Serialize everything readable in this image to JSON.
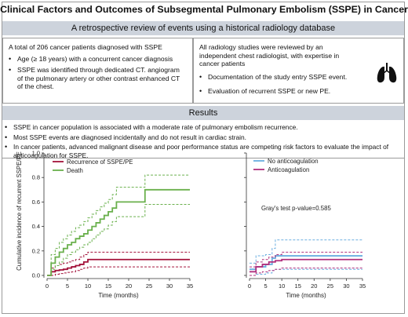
{
  "title": "Clinical Factors and Outcomes of Subsegmental Pulmonary Embolism (SSPE) in Cancer",
  "subtitle": "A retrospective review of events using a historical radiology database",
  "left_box": {
    "intro": "A total of 206 cancer patients diagnosed with SSPE",
    "bullets": [
      "Age (≥ 18 years) with a concurrent cancer diagnosis",
      "SSPE was identified through dedicated CT. angiogram of the pulmonary artery or other contrast enhanced CT of the chest."
    ]
  },
  "right_box": {
    "intro": "All radiology studies were reviewed by an independent chest radiologist, with expertise in cancer patients",
    "bullets": [
      "Documentation of the study entry SSPE event.",
      "Evaluation of recurrent SSPE or new PE."
    ],
    "icon": "lungs-icon"
  },
  "results": {
    "heading": "Results",
    "bullets": [
      "SSPE in cancer population is associated with a moderate rate of pulmonary embolism recurrence.",
      "Most SSPE events are diagnosed incidentally and do not result in cardiac strain.",
      "In cancer patients, advanced malignant disease and poor performance status are competing risk factors to evaluate the impact of anticoagulation for SSPE."
    ]
  },
  "chart_data": [
    {
      "type": "line",
      "ylabel": "Cumulative incidence of recurrent SSPE/PE",
      "xlabel": "Time (months)",
      "xlim": [
        0,
        35
      ],
      "ylim": [
        0,
        1.0
      ],
      "xticks": [
        0,
        5,
        10,
        15,
        20,
        25,
        30,
        35
      ],
      "yticks": [
        0.0,
        0.2,
        0.4,
        0.6,
        0.8,
        1.0
      ],
      "legend_position": "top-left",
      "series": [
        {
          "name": "Recurrence of SSPE/PE",
          "color": "#a3123a",
          "x": [
            0,
            1,
            2,
            3,
            4,
            5,
            6,
            7,
            8,
            9,
            10,
            11,
            35
          ],
          "y": [
            0,
            0.03,
            0.04,
            0.045,
            0.05,
            0.06,
            0.07,
            0.08,
            0.09,
            0.11,
            0.13,
            0.13,
            0.13
          ],
          "ci_upper": [
            0,
            0.06,
            0.08,
            0.09,
            0.1,
            0.11,
            0.12,
            0.13,
            0.15,
            0.17,
            0.19,
            0.19,
            0.19
          ],
          "ci_lower": [
            0,
            0,
            0.01,
            0.015,
            0.02,
            0.025,
            0.03,
            0.04,
            0.05,
            0.06,
            0.07,
            0.07,
            0.07
          ]
        },
        {
          "name": "Death",
          "color": "#6ab04c",
          "x": [
            0,
            1,
            2,
            3,
            4,
            5,
            6,
            7,
            8,
            9,
            10,
            11,
            12,
            13,
            14,
            15,
            16,
            17,
            23,
            24,
            35
          ],
          "y": [
            0,
            0.1,
            0.15,
            0.19,
            0.22,
            0.25,
            0.27,
            0.3,
            0.32,
            0.34,
            0.37,
            0.4,
            0.43,
            0.46,
            0.49,
            0.52,
            0.55,
            0.6,
            0.6,
            0.7,
            0.7
          ],
          "ci_upper": [
            0,
            0.17,
            0.22,
            0.27,
            0.3,
            0.33,
            0.36,
            0.39,
            0.41,
            0.44,
            0.47,
            0.5,
            0.53,
            0.56,
            0.59,
            0.62,
            0.66,
            0.72,
            0.72,
            0.82,
            0.82
          ],
          "ci_lower": [
            0,
            0.05,
            0.08,
            0.11,
            0.14,
            0.17,
            0.19,
            0.21,
            0.23,
            0.25,
            0.27,
            0.3,
            0.33,
            0.36,
            0.38,
            0.41,
            0.44,
            0.48,
            0.48,
            0.58,
            0.58
          ]
        }
      ]
    },
    {
      "type": "line",
      "xlabel": "Time (months)",
      "xlim": [
        0,
        35
      ],
      "ylim": [
        0,
        1.0
      ],
      "xticks": [
        0,
        5,
        10,
        15,
        20,
        25,
        30,
        35
      ],
      "annotation": "Gray's test p-value=0.585",
      "legend_position": "top-left",
      "series": [
        {
          "name": "No anticoagulation",
          "color": "#6aaee0",
          "x": [
            0,
            2,
            5,
            7,
            8,
            35
          ],
          "y": [
            0.05,
            0.07,
            0.09,
            0.14,
            0.16,
            0.16
          ],
          "ci_upper": [
            0.1,
            0.16,
            0.17,
            0.22,
            0.29,
            0.29
          ],
          "ci_lower": [
            0,
            0.01,
            0.02,
            0.04,
            0.05,
            0.05
          ]
        },
        {
          "name": "Anticoagulation",
          "color": "#b0307e",
          "x": [
            0,
            2,
            4,
            6,
            8,
            10,
            35
          ],
          "y": [
            0.03,
            0.07,
            0.09,
            0.11,
            0.12,
            0.13,
            0.13
          ],
          "ci_upper": [
            0.07,
            0.11,
            0.13,
            0.15,
            0.17,
            0.19,
            0.19
          ],
          "ci_lower": [
            0,
            0.02,
            0.03,
            0.04,
            0.05,
            0.06,
            0.06
          ]
        }
      ]
    }
  ]
}
